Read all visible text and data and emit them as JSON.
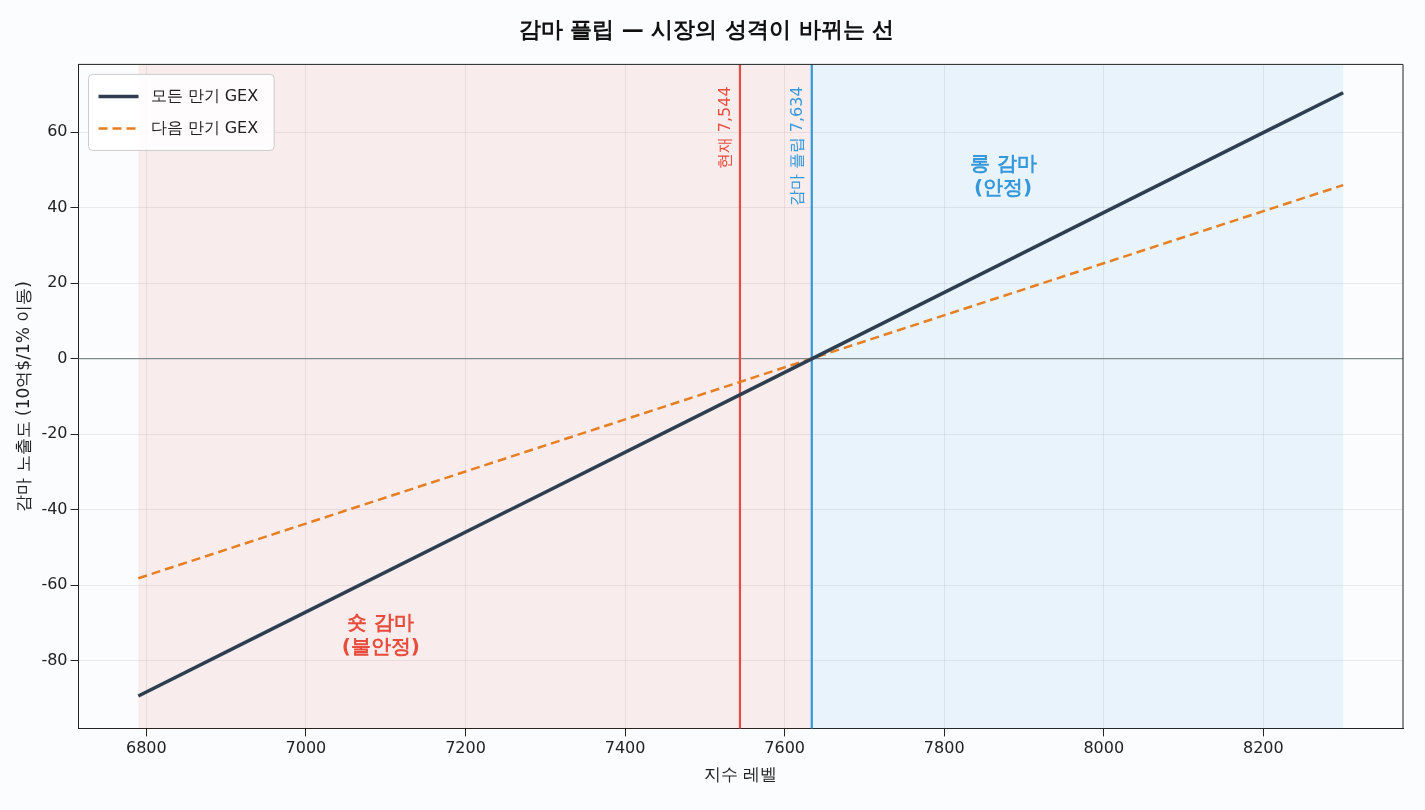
{
  "chart_data": {
    "type": "line",
    "title": "감마 플립 — 시장의 성격이 바뀌는 선",
    "xlabel": "지수 레벨",
    "ylabel": "감마 노출도 (10억$/1% 이동)",
    "x": [
      6790,
      8300
    ],
    "series": [
      {
        "name": "모든 만기 GEX",
        "color": "#2c3e50",
        "values": [
          -89.4,
          70.5
        ],
        "line_style": "solid"
      },
      {
        "name": "다음 만기 GEX",
        "color": "#e67e22",
        "values": [
          -58.2,
          46
        ],
        "line_style": "dashed"
      }
    ],
    "xlim": [
      6715,
      8375
    ],
    "ylim": [
      -98,
      78
    ],
    "xticks": [
      6800,
      7000,
      7200,
      7400,
      7600,
      7800,
      8000,
      8200
    ],
    "yticks": [
      -80,
      -60,
      -40,
      -20,
      0,
      20,
      40,
      60
    ],
    "grid": true,
    "legend": "top left",
    "marker": "none",
    "bands": [
      {
        "axis": "x",
        "from": 6790,
        "to": 7634,
        "color": "#e74c3c"
      },
      {
        "axis": "x",
        "from": 7634,
        "to": 8300,
        "color": "#3498db"
      }
    ],
    "ref_lines": [
      {
        "axis": "y",
        "value": 0,
        "color": "#7f8c8d"
      },
      {
        "axis": "x",
        "value": 7544,
        "label": "현재 7,544",
        "color": "#e74c3c"
      },
      {
        "axis": "x",
        "value": 7634,
        "label": "감마 플립 7,634",
        "color": "#3498db"
      }
    ],
    "annotations": [
      "숏 감마\n(불안정)",
      "롱 감마\n(안정)"
    ]
  }
}
